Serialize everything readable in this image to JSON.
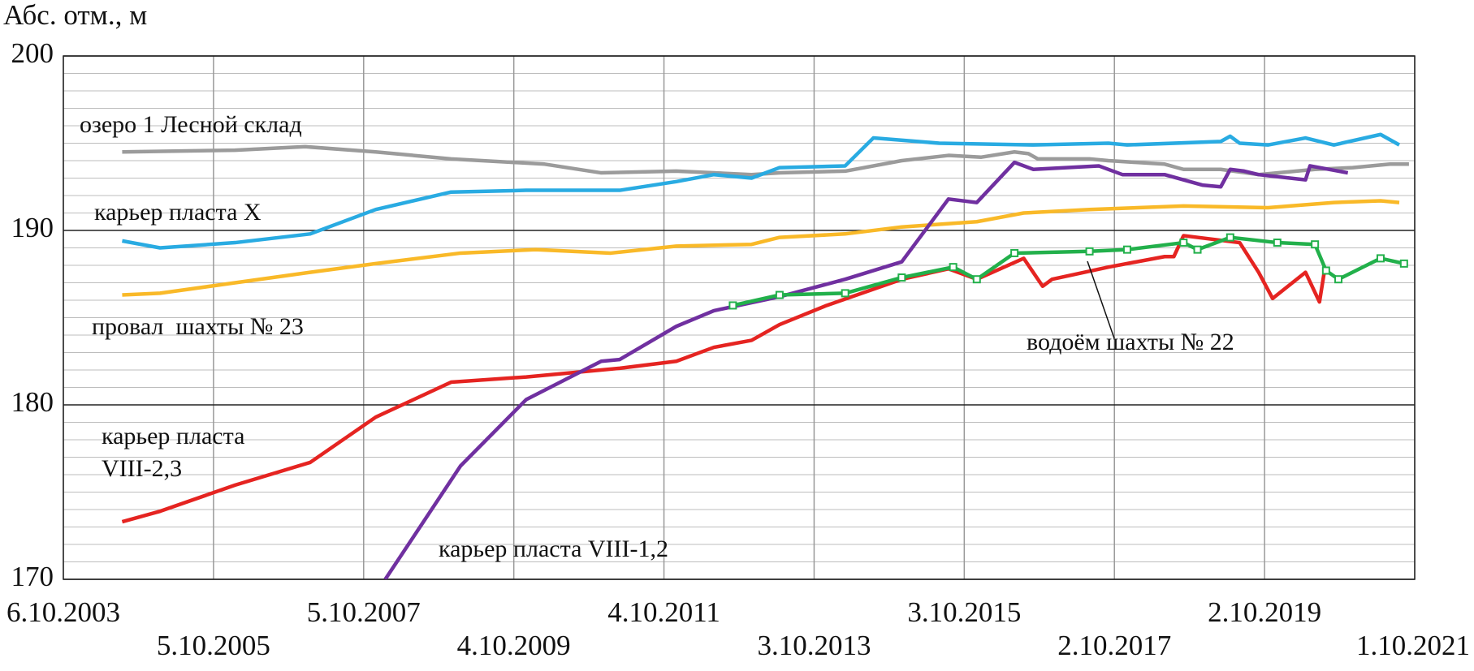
{
  "chart_data": {
    "type": "line",
    "y_axis_label": "Абс. отм., м",
    "xlim": [
      "2003-10-06",
      "2021-10-01"
    ],
    "xticks": [
      {
        "value": "2003-10-06",
        "label": "6.10.2003"
      },
      {
        "value": "2005-10-05",
        "label": "5.10.2005"
      },
      {
        "value": "2007-10-05",
        "label": "5.10.2007"
      },
      {
        "value": "2009-10-04",
        "label": "4.10.2009"
      },
      {
        "value": "2011-10-04",
        "label": "4.10.2011"
      },
      {
        "value": "2013-10-03",
        "label": "3.10.2013"
      },
      {
        "value": "2015-10-03",
        "label": "3.10.2015"
      },
      {
        "value": "2017-10-02",
        "label": "2.10.2017"
      },
      {
        "value": "2019-10-02",
        "label": "2.10.2019"
      },
      {
        "value": "2021-10-01",
        "label": "1.10.2021"
      }
    ],
    "ylim": [
      170,
      200
    ],
    "yticks": [
      170,
      180,
      190,
      200
    ],
    "minor_yticks": [
      171,
      172,
      173,
      174,
      175,
      176,
      177,
      178,
      179,
      181,
      182,
      183,
      184,
      185,
      186,
      187,
      188,
      189,
      191,
      192,
      193,
      194,
      195,
      196,
      197,
      198,
      199
    ],
    "grid": true,
    "series": [
      {
        "name": "озеро 1 Лесной склад",
        "color": "#9b9b9b",
        "x": [
          "2004-07-18",
          "2006-01-18",
          "2006-12-25",
          "2007-12-03",
          "2008-12-03",
          "2010-03-03",
          "2010-12-03",
          "2011-12-03",
          "2012-06-03",
          "2012-12-03",
          "2013-04-18",
          "2014-03-03",
          "2014-12-03",
          "2015-07-18",
          "2015-12-25",
          "2016-06-03",
          "2016-08-10",
          "2016-09-25",
          "2017-06-03",
          "2017-09-03",
          "2018-06-03",
          "2018-09-03",
          "2019-03-03",
          "2019-09-03",
          "2020-06-03",
          "2020-12-03",
          "2021-06-03",
          "2021-09-03"
        ],
        "values": [
          194.5,
          194.6,
          194.8,
          194.5,
          194.1,
          193.8,
          193.3,
          193.4,
          193.3,
          193.2,
          193.3,
          193.4,
          194.0,
          194.3,
          194.2,
          194.5,
          194.4,
          194.1,
          194.1,
          194.0,
          193.8,
          193.5,
          193.5,
          193.2,
          193.5,
          193.6,
          193.8,
          193.8
        ]
      },
      {
        "name": "карьер пласта X",
        "color": "#29abe2",
        "x": [
          "2004-07-18",
          "2005-01-18",
          "2006-01-18",
          "2007-01-18",
          "2007-12-03",
          "2008-12-03",
          "2009-12-03",
          "2011-03-03",
          "2011-12-03",
          "2012-06-03",
          "2012-12-03",
          "2013-04-18",
          "2014-03-03",
          "2014-07-18",
          "2015-06-03",
          "2016-09-03",
          "2017-09-03",
          "2017-12-03",
          "2019-03-03",
          "2019-04-18",
          "2019-06-03",
          "2019-10-18",
          "2020-04-18",
          "2020-09-03",
          "2021-04-18",
          "2021-07-18"
        ],
        "values": [
          189.4,
          189.0,
          189.3,
          189.8,
          191.2,
          192.2,
          192.3,
          192.3,
          192.8,
          193.2,
          193.0,
          193.6,
          193.7,
          195.3,
          195.0,
          194.9,
          195.0,
          194.9,
          195.1,
          195.4,
          195.0,
          194.9,
          195.3,
          194.9,
          195.5,
          194.9
        ]
      },
      {
        "name": "провал  шахты № 23",
        "color": "#f9b928",
        "x": [
          "2004-07-18",
          "2005-01-18",
          "2006-01-18",
          "2007-01-18",
          "2007-12-03",
          "2009-01-18",
          "2010-01-18",
          "2011-01-18",
          "2011-12-03",
          "2012-12-03",
          "2013-04-18",
          "2014-03-03",
          "2014-12-03",
          "2015-12-03",
          "2016-07-18",
          "2017-06-03",
          "2018-09-03",
          "2019-10-18",
          "2020-09-03",
          "2021-04-18",
          "2021-07-18"
        ],
        "values": [
          186.3,
          186.4,
          187.0,
          187.6,
          188.1,
          188.7,
          188.9,
          188.7,
          189.1,
          189.2,
          189.6,
          189.8,
          190.2,
          190.5,
          191.0,
          191.2,
          191.4,
          191.3,
          191.6,
          191.7,
          191.6
        ]
      },
      {
        "name": "карьер пласта VIII-2,3",
        "color": "#e52421",
        "x": [
          "2004-07-18",
          "2005-01-18",
          "2006-01-18",
          "2007-01-18",
          "2007-12-03",
          "2008-12-03",
          "2009-12-03",
          "2011-03-03",
          "2011-12-03",
          "2012-06-03",
          "2012-12-03",
          "2013-04-18",
          "2013-12-03",
          "2014-12-03",
          "2015-07-18",
          "2015-12-03",
          "2016-07-18",
          "2016-10-18",
          "2016-12-03",
          "2017-09-03",
          "2018-06-03",
          "2018-07-18",
          "2018-09-03",
          "2019-06-03",
          "2019-09-03",
          "2019-11-10",
          "2020-04-18",
          "2020-06-25",
          "2020-07-18"
        ],
        "values": [
          173.3,
          173.9,
          175.4,
          176.7,
          179.3,
          181.3,
          181.6,
          182.1,
          182.5,
          183.3,
          183.7,
          184.6,
          185.7,
          187.2,
          187.8,
          187.2,
          188.4,
          186.8,
          187.2,
          187.9,
          188.5,
          188.5,
          189.7,
          189.3,
          187.6,
          186.1,
          187.6,
          185.9,
          187.6
        ]
      },
      {
        "name": "карьер пласта VIII-1,2",
        "color": "#7030a0",
        "x": [
          "2008-01-18",
          "2009-01-18",
          "2009-12-03",
          "2010-12-03",
          "2011-03-03",
          "2011-12-03",
          "2012-06-03",
          "2013-04-18",
          "2014-03-03",
          "2014-12-03",
          "2015-07-18",
          "2015-12-03",
          "2016-06-03",
          "2016-09-03",
          "2017-07-18",
          "2017-11-10",
          "2018-06-03",
          "2018-12-03",
          "2019-03-03",
          "2019-04-18",
          "2019-06-25",
          "2019-09-03",
          "2020-04-18",
          "2020-05-10",
          "2020-11-10"
        ],
        "values": [
          170.0,
          176.5,
          180.3,
          182.5,
          182.6,
          184.5,
          185.4,
          186.2,
          187.2,
          188.2,
          191.8,
          191.6,
          193.9,
          193.5,
          193.7,
          193.2,
          193.2,
          192.6,
          192.5,
          193.5,
          193.4,
          193.2,
          192.9,
          193.7,
          193.3
        ]
      },
      {
        "name": "водоём шахты № 22",
        "color": "#22b04b",
        "x": [
          "2012-09-03",
          "2013-04-18",
          "2014-03-03",
          "2014-12-03",
          "2015-08-10",
          "2015-12-03",
          "2016-06-03",
          "2017-06-03",
          "2017-12-03",
          "2018-09-03",
          "2018-11-10",
          "2019-04-18",
          "2019-12-03",
          "2020-06-03",
          "2020-07-27",
          "2020-09-25",
          "2021-04-18",
          "2021-08-10"
        ],
        "values": [
          185.7,
          186.3,
          186.4,
          187.3,
          187.9,
          187.2,
          188.7,
          188.8,
          188.9,
          189.3,
          188.9,
          189.6,
          189.3,
          189.2,
          187.7,
          187.2,
          188.4,
          188.1
        ]
      }
    ]
  }
}
